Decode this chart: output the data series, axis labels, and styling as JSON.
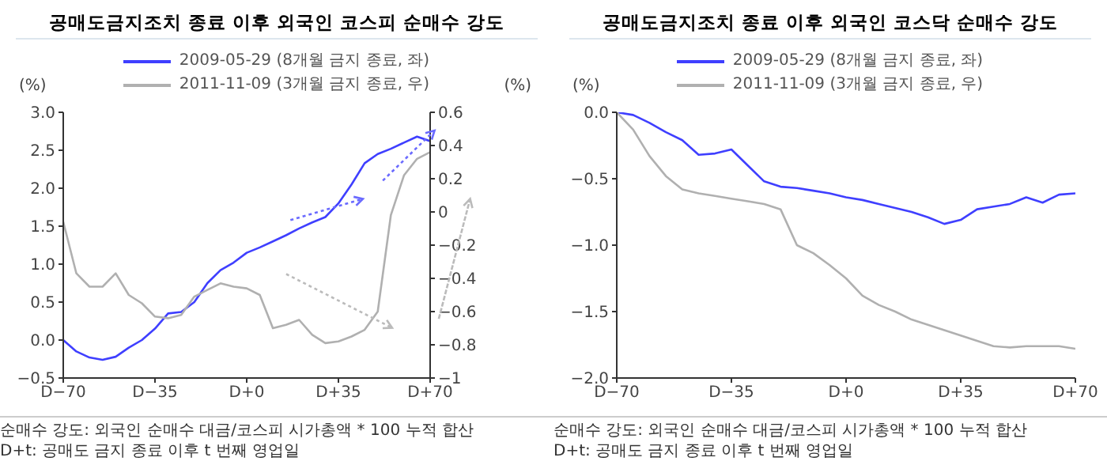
{
  "chart_data": [
    {
      "type": "line",
      "title": "공매도금지조치 종료 이후 외국인 코스피 순매수 강도",
      "ylabel": "(%)",
      "y2label": "(%)",
      "categories": [
        "D−70",
        null,
        null,
        null,
        null,
        null,
        null,
        "D−35",
        null,
        null,
        null,
        null,
        null,
        null,
        "D+0",
        null,
        null,
        null,
        null,
        null,
        null,
        "D+35",
        null,
        null,
        null,
        null,
        null,
        null,
        "D+70"
      ],
      "ylim": [
        -0.5,
        3
      ],
      "yticks": [
        {
          "value": -0.5,
          "label": "−0.5"
        },
        {
          "value": 0,
          "label": "0.0"
        },
        {
          "value": 0.5,
          "label": "0.5"
        },
        {
          "value": 1,
          "label": "1.0"
        },
        {
          "value": 1.5,
          "label": "1.5"
        },
        {
          "value": 2,
          "label": "2.0"
        },
        {
          "value": 2.5,
          "label": "2.5"
        },
        {
          "value": 3,
          "label": "3.0"
        }
      ],
      "y2lim": [
        -1,
        0.6
      ],
      "y2ticks": [
        -1,
        -0.8,
        -0.6,
        -0.4,
        -0.2,
        0,
        0.2,
        0.4,
        0.6
      ],
      "legend": "top",
      "marker": "none",
      "line_style": "solid",
      "series": [
        {
          "name": "2009-05-29 (8개월 금지 종료, 좌)",
          "color": "#3f3fff",
          "values": [
            0,
            -0.15,
            -0.23,
            -0.26,
            -0.22,
            -0.1,
            0.0,
            0.15,
            0.35,
            0.37,
            0.5,
            0.75,
            0.92,
            1.02,
            1.15,
            1.22,
            1.3,
            1.38,
            1.47,
            1.55,
            1.62,
            1.8,
            2.05,
            2.33,
            2.45,
            2.52,
            2.6,
            2.68,
            2.62
          ]
        },
        {
          "name": "2011-11-09 (3개월 금지 종료, 우)",
          "color": "#b0b0b0",
          "axis": "y2",
          "values": [
            -0.06,
            -0.37,
            -0.45,
            -0.45,
            -0.37,
            -0.5,
            -0.55,
            -0.63,
            -0.64,
            -0.62,
            -0.51,
            -0.47,
            -0.43,
            -0.45,
            -0.46,
            -0.5,
            -0.7,
            -0.68,
            -0.65,
            -0.74,
            -0.79,
            -0.78,
            -0.75,
            -0.71,
            -0.6,
            -0.02,
            0.22,
            0.32,
            0.36
          ]
        }
      ],
      "annotations": [
        "순매수 강도: 외국인 순매수 대금/코스피 시가총액 * 100 누적 합산",
        "D+t: 공매도 금지 종료 이후 t 번째 영업일"
      ]
    },
    {
      "type": "line",
      "title": "공매도금지조치 종료 이후 외국인 코스닥 순매수 강도",
      "ylabel": "(%)",
      "categories": [
        "D−70",
        null,
        null,
        null,
        null,
        null,
        null,
        "D−35",
        null,
        null,
        null,
        null,
        null,
        null,
        "D+0",
        null,
        null,
        null,
        null,
        null,
        null,
        "D+35",
        null,
        null,
        null,
        null,
        null,
        null,
        "D+70"
      ],
      "ylim": [
        -2,
        0
      ],
      "yticks": [
        {
          "value": -2,
          "label": "−2.0"
        },
        {
          "value": -1.5,
          "label": "−1.5"
        },
        {
          "value": -1,
          "label": "−1.0"
        },
        {
          "value": -0.5,
          "label": "−0.5"
        },
        {
          "value": 0,
          "label": "0.0"
        }
      ],
      "legend": "top",
      "marker": "none",
      "line_style": "solid",
      "series": [
        {
          "name": "2009-05-29 (8개월 금지 종료, 좌)",
          "color": "#3f3fff",
          "values": [
            0,
            -0.02,
            -0.08,
            -0.15,
            -0.21,
            -0.32,
            -0.31,
            -0.28,
            -0.4,
            -0.52,
            -0.56,
            -0.57,
            -0.59,
            -0.61,
            -0.64,
            -0.66,
            -0.69,
            -0.72,
            -0.75,
            -0.79,
            -0.84,
            -0.81,
            -0.73,
            -0.71,
            -0.69,
            -0.64,
            -0.68,
            -0.62,
            -0.61
          ]
        },
        {
          "name": "2011-11-09 (3개월 금지 종료, 우)",
          "color": "#b0b0b0",
          "values": [
            0,
            -0.13,
            -0.33,
            -0.48,
            -0.58,
            -0.61,
            -0.63,
            -0.65,
            -0.67,
            -0.69,
            -0.73,
            -1.0,
            -1.06,
            -1.15,
            -1.25,
            -1.38,
            -1.45,
            -1.5,
            -1.56,
            -1.6,
            -1.64,
            -1.68,
            -1.72,
            -1.76,
            -1.77,
            -1.76,
            -1.76,
            -1.76,
            -1.78
          ]
        }
      ],
      "annotations": [
        "순매수 강도: 외국인 순매수 대금/코스피 시가총액 * 100 누적 합산",
        "D+t: 공매도 금지 종료 이후 t 번째 영업일"
      ]
    }
  ]
}
